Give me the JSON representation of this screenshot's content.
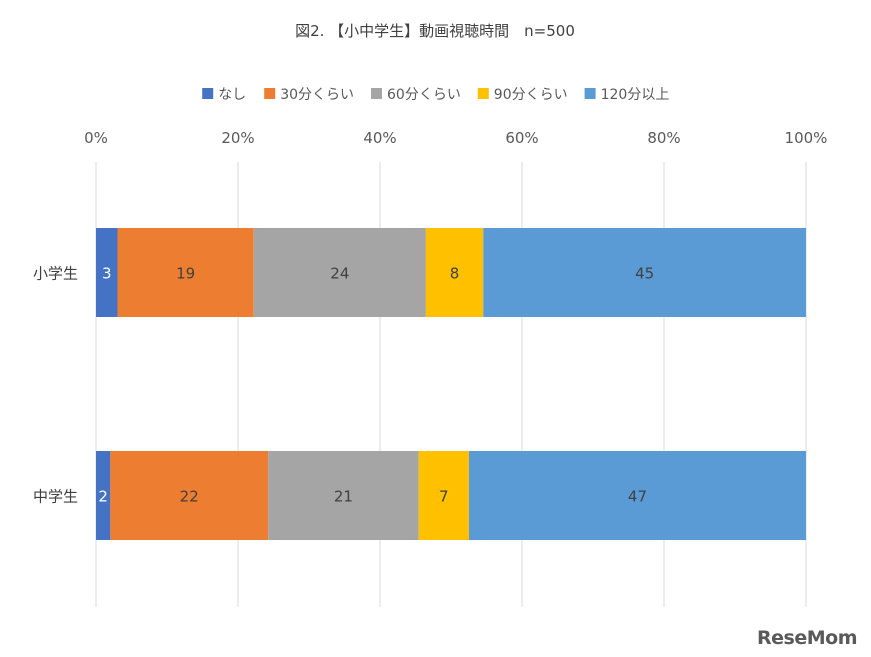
{
  "chart_data": {
    "type": "bar",
    "orientation": "horizontal",
    "stacked": "percent",
    "title": "図2. 【小中学生】動画視聴時間　n=500",
    "categories": [
      "小学生",
      "中学生"
    ],
    "series": [
      {
        "name": "なし",
        "values": [
          3,
          2
        ],
        "color": "#4472C4"
      },
      {
        "name": "30分くらい",
        "values": [
          19,
          22
        ],
        "color": "#ED7D31"
      },
      {
        "name": "60分くらい",
        "values": [
          24,
          21
        ],
        "color": "#A5A5A5"
      },
      {
        "name": "90分くらい",
        "values": [
          8,
          7
        ],
        "color": "#FFC000"
      },
      {
        "name": "120分以上",
        "values": [
          45,
          47
        ],
        "color": "#5B9BD5"
      }
    ],
    "x_ticks": [
      "0%",
      "20%",
      "40%",
      "60%",
      "80%",
      "100%"
    ],
    "xlim": [
      0,
      100
    ],
    "legend_position": "top",
    "grid": true
  },
  "logo_text": "ReseMom"
}
